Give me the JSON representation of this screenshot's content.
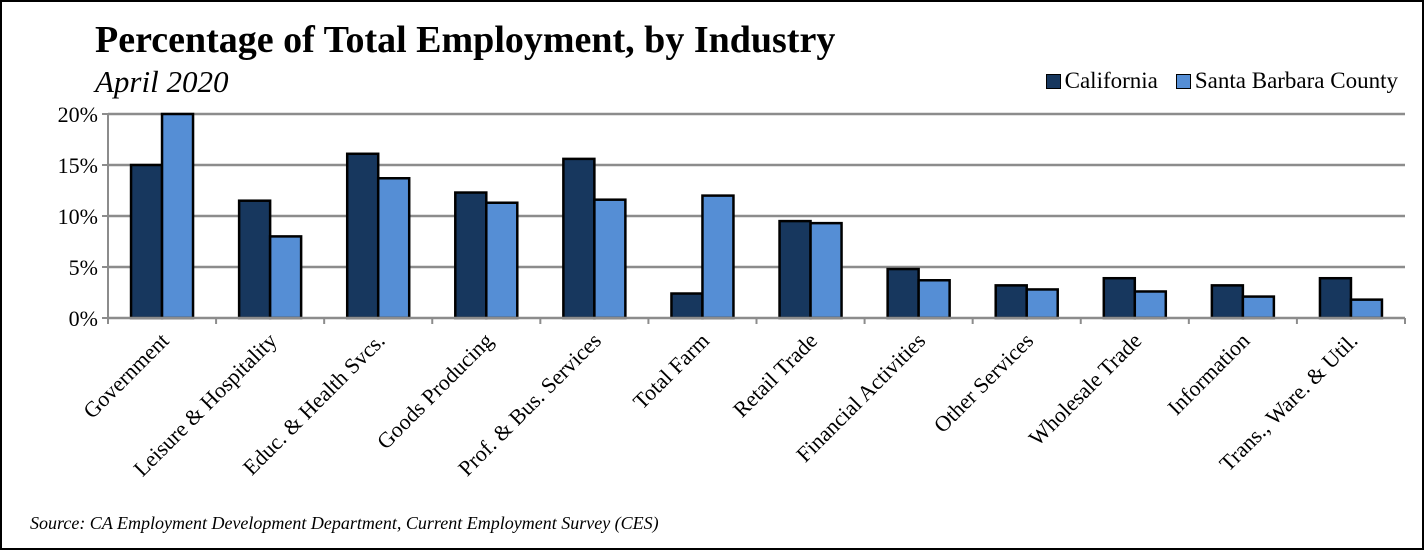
{
  "chart_data": {
    "type": "bar",
    "title": "Percentage of Total Employment, by Industry",
    "subtitle": "April 2020",
    "source": "Source: CA Employment Development Department, Current Employment Survey (CES)",
    "categories": [
      "Government",
      "Leisure & Hospitality",
      "Educ. & Health Svcs.",
      "Goods Producing",
      "Prof. & Bus. Services",
      "Total Farm",
      "Retail Trade",
      "Financial Activities",
      "Other Services",
      "Wholesale Trade",
      "Information",
      "Trans., Ware. & Util."
    ],
    "series": [
      {
        "name": "California",
        "color": "#17375e",
        "values": [
          15.0,
          11.5,
          16.1,
          12.3,
          15.6,
          2.4,
          9.5,
          4.8,
          3.2,
          3.9,
          3.2,
          3.9
        ]
      },
      {
        "name": "Santa Barbara County",
        "color": "#558ed5",
        "values": [
          20.0,
          8.0,
          13.7,
          11.3,
          11.6,
          12.0,
          9.3,
          3.7,
          2.8,
          2.6,
          2.1,
          1.8
        ]
      }
    ],
    "ylim": [
      0,
      20
    ],
    "yticks": [
      "0%",
      "5%",
      "10%",
      "15%",
      "20%"
    ],
    "ytick_values": [
      0,
      5,
      10,
      15,
      20
    ],
    "grid": true,
    "legend_position": "top-right"
  }
}
